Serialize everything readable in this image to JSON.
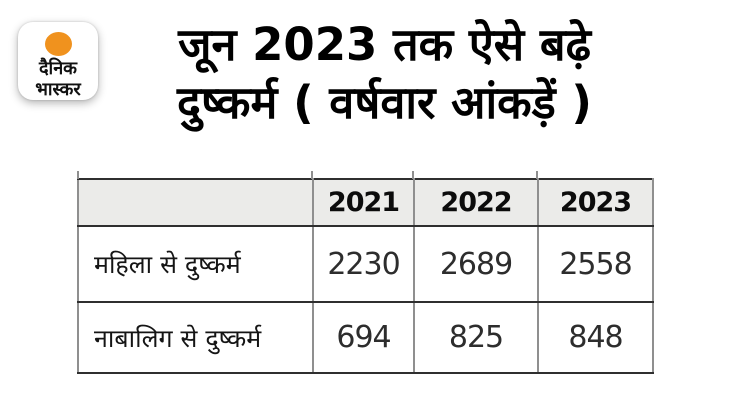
{
  "logo": {
    "name": "dainik-bhaskar",
    "line1": "दैनिक",
    "line2": "भास्कर",
    "dot_color": "#f0921e"
  },
  "title": {
    "line1": "जून 2023 तक ऐसे बढ़े",
    "line2": "दुष्कर्म ( वर्षवार आंकड़ें )"
  },
  "table": {
    "headers": [
      "2021",
      "2022",
      "2023"
    ],
    "rows": [
      {
        "label": "महिला से दुष्कर्म",
        "values": [
          "2230",
          "2689",
          "2558"
        ]
      },
      {
        "label": "नाबालिग से दुष्कर्म",
        "values": [
          "694",
          "825",
          "848"
        ]
      }
    ]
  },
  "chart_data": {
    "type": "table",
    "title": "जून 2023 तक ऐसे बढ़े दुष्कर्म ( वर्षवार आंकड़ें )",
    "columns": [
      "",
      "2021",
      "2022",
      "2023"
    ],
    "rows": [
      {
        "label": "महिला से दुष्कर्म",
        "values": [
          2230,
          2689,
          2558
        ]
      },
      {
        "label": "नाबालिग से दुष्कर्म",
        "values": [
          694,
          825,
          848
        ]
      }
    ],
    "colors": {
      "header_bg": "#ebebe9",
      "vertical_rule": "#8f8f8f",
      "horizontal_rule": "#2f2f2f",
      "accent_orange": "#f0921e",
      "background": "#ffffff"
    },
    "layout": {
      "legend": "none",
      "grid": "table-rules"
    }
  }
}
